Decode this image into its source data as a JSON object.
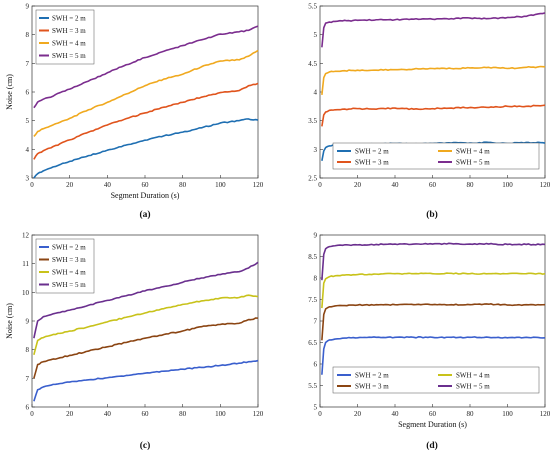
{
  "chart_data": [
    {
      "type": "line",
      "panel_label": "(a)",
      "xlabel": "Segment Duration (s)",
      "ylabel": "Noise (cm)",
      "xlim": [
        0,
        120
      ],
      "ylim": [
        3,
        9
      ],
      "xticks": [
        0,
        20,
        40,
        60,
        80,
        100,
        120
      ],
      "yticks": [
        3,
        4,
        5,
        6,
        7,
        8,
        9
      ],
      "grid": false,
      "legend_position": "top-left",
      "legend_columns": 1,
      "x": [
        1,
        3,
        6,
        10,
        15,
        20,
        30,
        40,
        50,
        60,
        70,
        80,
        90,
        100,
        110,
        115,
        120
      ],
      "series": [
        {
          "name": "SWH = 2 m",
          "color": "#1f6fb2",
          "values": [
            3.0,
            3.15,
            3.25,
            3.35,
            3.47,
            3.58,
            3.78,
            3.97,
            4.15,
            4.32,
            4.47,
            4.6,
            4.75,
            4.92,
            5.0,
            5.06,
            5.02
          ]
        },
        {
          "name": "SWH = 3 m",
          "color": "#e0541d",
          "values": [
            3.65,
            3.85,
            3.95,
            4.05,
            4.2,
            4.33,
            4.6,
            4.85,
            5.07,
            5.27,
            5.47,
            5.64,
            5.82,
            5.98,
            6.05,
            6.22,
            6.3
          ]
        },
        {
          "name": "SWH = 4 m",
          "color": "#f0a91f",
          "values": [
            4.45,
            4.62,
            4.72,
            4.82,
            4.95,
            5.08,
            5.38,
            5.64,
            5.93,
            6.22,
            6.45,
            6.62,
            6.88,
            7.08,
            7.12,
            7.25,
            7.45
          ]
        },
        {
          "name": "SWH = 5 m",
          "color": "#7b2d8e",
          "values": [
            5.45,
            5.65,
            5.75,
            5.82,
            5.98,
            6.1,
            6.38,
            6.67,
            6.95,
            7.2,
            7.42,
            7.62,
            7.82,
            8.02,
            8.1,
            8.15,
            8.3
          ]
        }
      ]
    },
    {
      "type": "line",
      "panel_label": "(b)",
      "xlabel": "",
      "ylabel": "",
      "xlim": [
        0,
        120
      ],
      "ylim": [
        2.5,
        5.5
      ],
      "xticks": [
        0,
        20,
        40,
        60,
        80,
        100,
        120
      ],
      "yticks": [
        2.5,
        3,
        3.5,
        4,
        4.5,
        5,
        5.5
      ],
      "grid": false,
      "legend_position": "bottom",
      "legend_columns": 2,
      "x": [
        1,
        2,
        3,
        5,
        8,
        12,
        20,
        30,
        40,
        50,
        60,
        70,
        80,
        90,
        100,
        110,
        120
      ],
      "series": [
        {
          "name": "SWH = 2 m",
          "color": "#1f6fb2",
          "values": [
            2.8,
            2.97,
            3.03,
            3.06,
            3.08,
            3.08,
            3.09,
            3.09,
            3.1,
            3.09,
            3.1,
            3.11,
            3.11,
            3.12,
            3.1,
            3.12,
            3.11
          ]
        },
        {
          "name": "SWH = 3 m",
          "color": "#e0541d",
          "values": [
            3.4,
            3.6,
            3.65,
            3.68,
            3.69,
            3.7,
            3.71,
            3.7,
            3.72,
            3.7,
            3.71,
            3.72,
            3.73,
            3.73,
            3.75,
            3.75,
            3.77
          ]
        },
        {
          "name": "SWH = 4 m",
          "color": "#f0a91f",
          "values": [
            3.95,
            4.25,
            4.32,
            4.35,
            4.36,
            4.37,
            4.38,
            4.38,
            4.39,
            4.4,
            4.41,
            4.41,
            4.42,
            4.43,
            4.41,
            4.43,
            4.44
          ]
        },
        {
          "name": "SWH = 5 m",
          "color": "#7b2d8e",
          "values": [
            4.78,
            5.12,
            5.2,
            5.22,
            5.23,
            5.24,
            5.25,
            5.26,
            5.26,
            5.27,
            5.27,
            5.28,
            5.29,
            5.28,
            5.3,
            5.32,
            5.38
          ]
        }
      ]
    },
    {
      "type": "line",
      "panel_label": "(c)",
      "xlabel": "",
      "ylabel": "Noise (cm)",
      "xlim": [
        0,
        120
      ],
      "ylim": [
        6,
        12
      ],
      "xticks": [
        0,
        20,
        40,
        60,
        80,
        100,
        120
      ],
      "yticks": [
        6,
        7,
        8,
        9,
        10,
        11,
        12
      ],
      "grid": false,
      "legend_position": "top-left",
      "legend_columns": 1,
      "x": [
        1,
        3,
        6,
        10,
        15,
        20,
        30,
        40,
        50,
        60,
        70,
        80,
        90,
        100,
        110,
        115,
        120
      ],
      "series": [
        {
          "name": "SWH = 2 m",
          "color": "#3a5fcd",
          "values": [
            6.2,
            6.6,
            6.7,
            6.76,
            6.82,
            6.87,
            6.95,
            7.02,
            7.1,
            7.18,
            7.25,
            7.32,
            7.38,
            7.45,
            7.53,
            7.58,
            7.62
          ]
        },
        {
          "name": "SWH = 3 m",
          "color": "#8b4513",
          "values": [
            7.0,
            7.48,
            7.58,
            7.65,
            7.72,
            7.8,
            7.95,
            8.1,
            8.25,
            8.4,
            8.53,
            8.65,
            8.8,
            8.88,
            8.92,
            9.05,
            9.1
          ]
        },
        {
          "name": "SWH = 4 m",
          "color": "#c8c21a",
          "values": [
            7.82,
            8.32,
            8.42,
            8.5,
            8.57,
            8.65,
            8.8,
            8.97,
            9.13,
            9.28,
            9.43,
            9.58,
            9.7,
            9.8,
            9.82,
            9.9,
            9.85
          ]
        },
        {
          "name": "SWH = 5 m",
          "color": "#6a2f8e",
          "values": [
            8.4,
            9.0,
            9.15,
            9.22,
            9.3,
            9.38,
            9.55,
            9.72,
            9.88,
            10.05,
            10.2,
            10.35,
            10.5,
            10.62,
            10.72,
            10.85,
            11.05
          ]
        }
      ]
    },
    {
      "type": "line",
      "panel_label": "(d)",
      "xlabel": "Segment Duration (s)",
      "ylabel": "",
      "xlim": [
        0,
        120
      ],
      "ylim": [
        5,
        9
      ],
      "xticks": [
        0,
        20,
        40,
        60,
        80,
        100,
        120
      ],
      "yticks": [
        5,
        5.5,
        6,
        6.5,
        7,
        7.5,
        8,
        8.5,
        9
      ],
      "grid": false,
      "legend_position": "bottom",
      "legend_columns": 2,
      "x": [
        1,
        2,
        3,
        5,
        8,
        12,
        20,
        30,
        40,
        50,
        60,
        70,
        80,
        90,
        100,
        110,
        120
      ],
      "series": [
        {
          "name": "SWH = 2 m",
          "color": "#3a5fcd",
          "values": [
            5.75,
            6.35,
            6.5,
            6.56,
            6.58,
            6.6,
            6.61,
            6.62,
            6.62,
            6.62,
            6.62,
            6.62,
            6.62,
            6.62,
            6.61,
            6.62,
            6.61
          ]
        },
        {
          "name": "SWH = 3 m",
          "color": "#8b4513",
          "values": [
            6.55,
            7.15,
            7.28,
            7.33,
            7.35,
            7.36,
            7.37,
            7.38,
            7.38,
            7.38,
            7.38,
            7.38,
            7.38,
            7.39,
            7.37,
            7.38,
            7.38
          ]
        },
        {
          "name": "SWH = 4 m",
          "color": "#c8c21a",
          "values": [
            7.3,
            7.88,
            7.98,
            8.03,
            8.05,
            8.07,
            8.08,
            8.09,
            8.1,
            8.1,
            8.1,
            8.11,
            8.1,
            8.1,
            8.1,
            8.1,
            8.1
          ]
        },
        {
          "name": "SWH = 5 m",
          "color": "#6a2f8e",
          "values": [
            7.95,
            8.55,
            8.68,
            8.73,
            8.75,
            8.76,
            8.77,
            8.78,
            8.79,
            8.79,
            8.79,
            8.8,
            8.79,
            8.79,
            8.78,
            8.78,
            8.78
          ]
        }
      ]
    }
  ]
}
